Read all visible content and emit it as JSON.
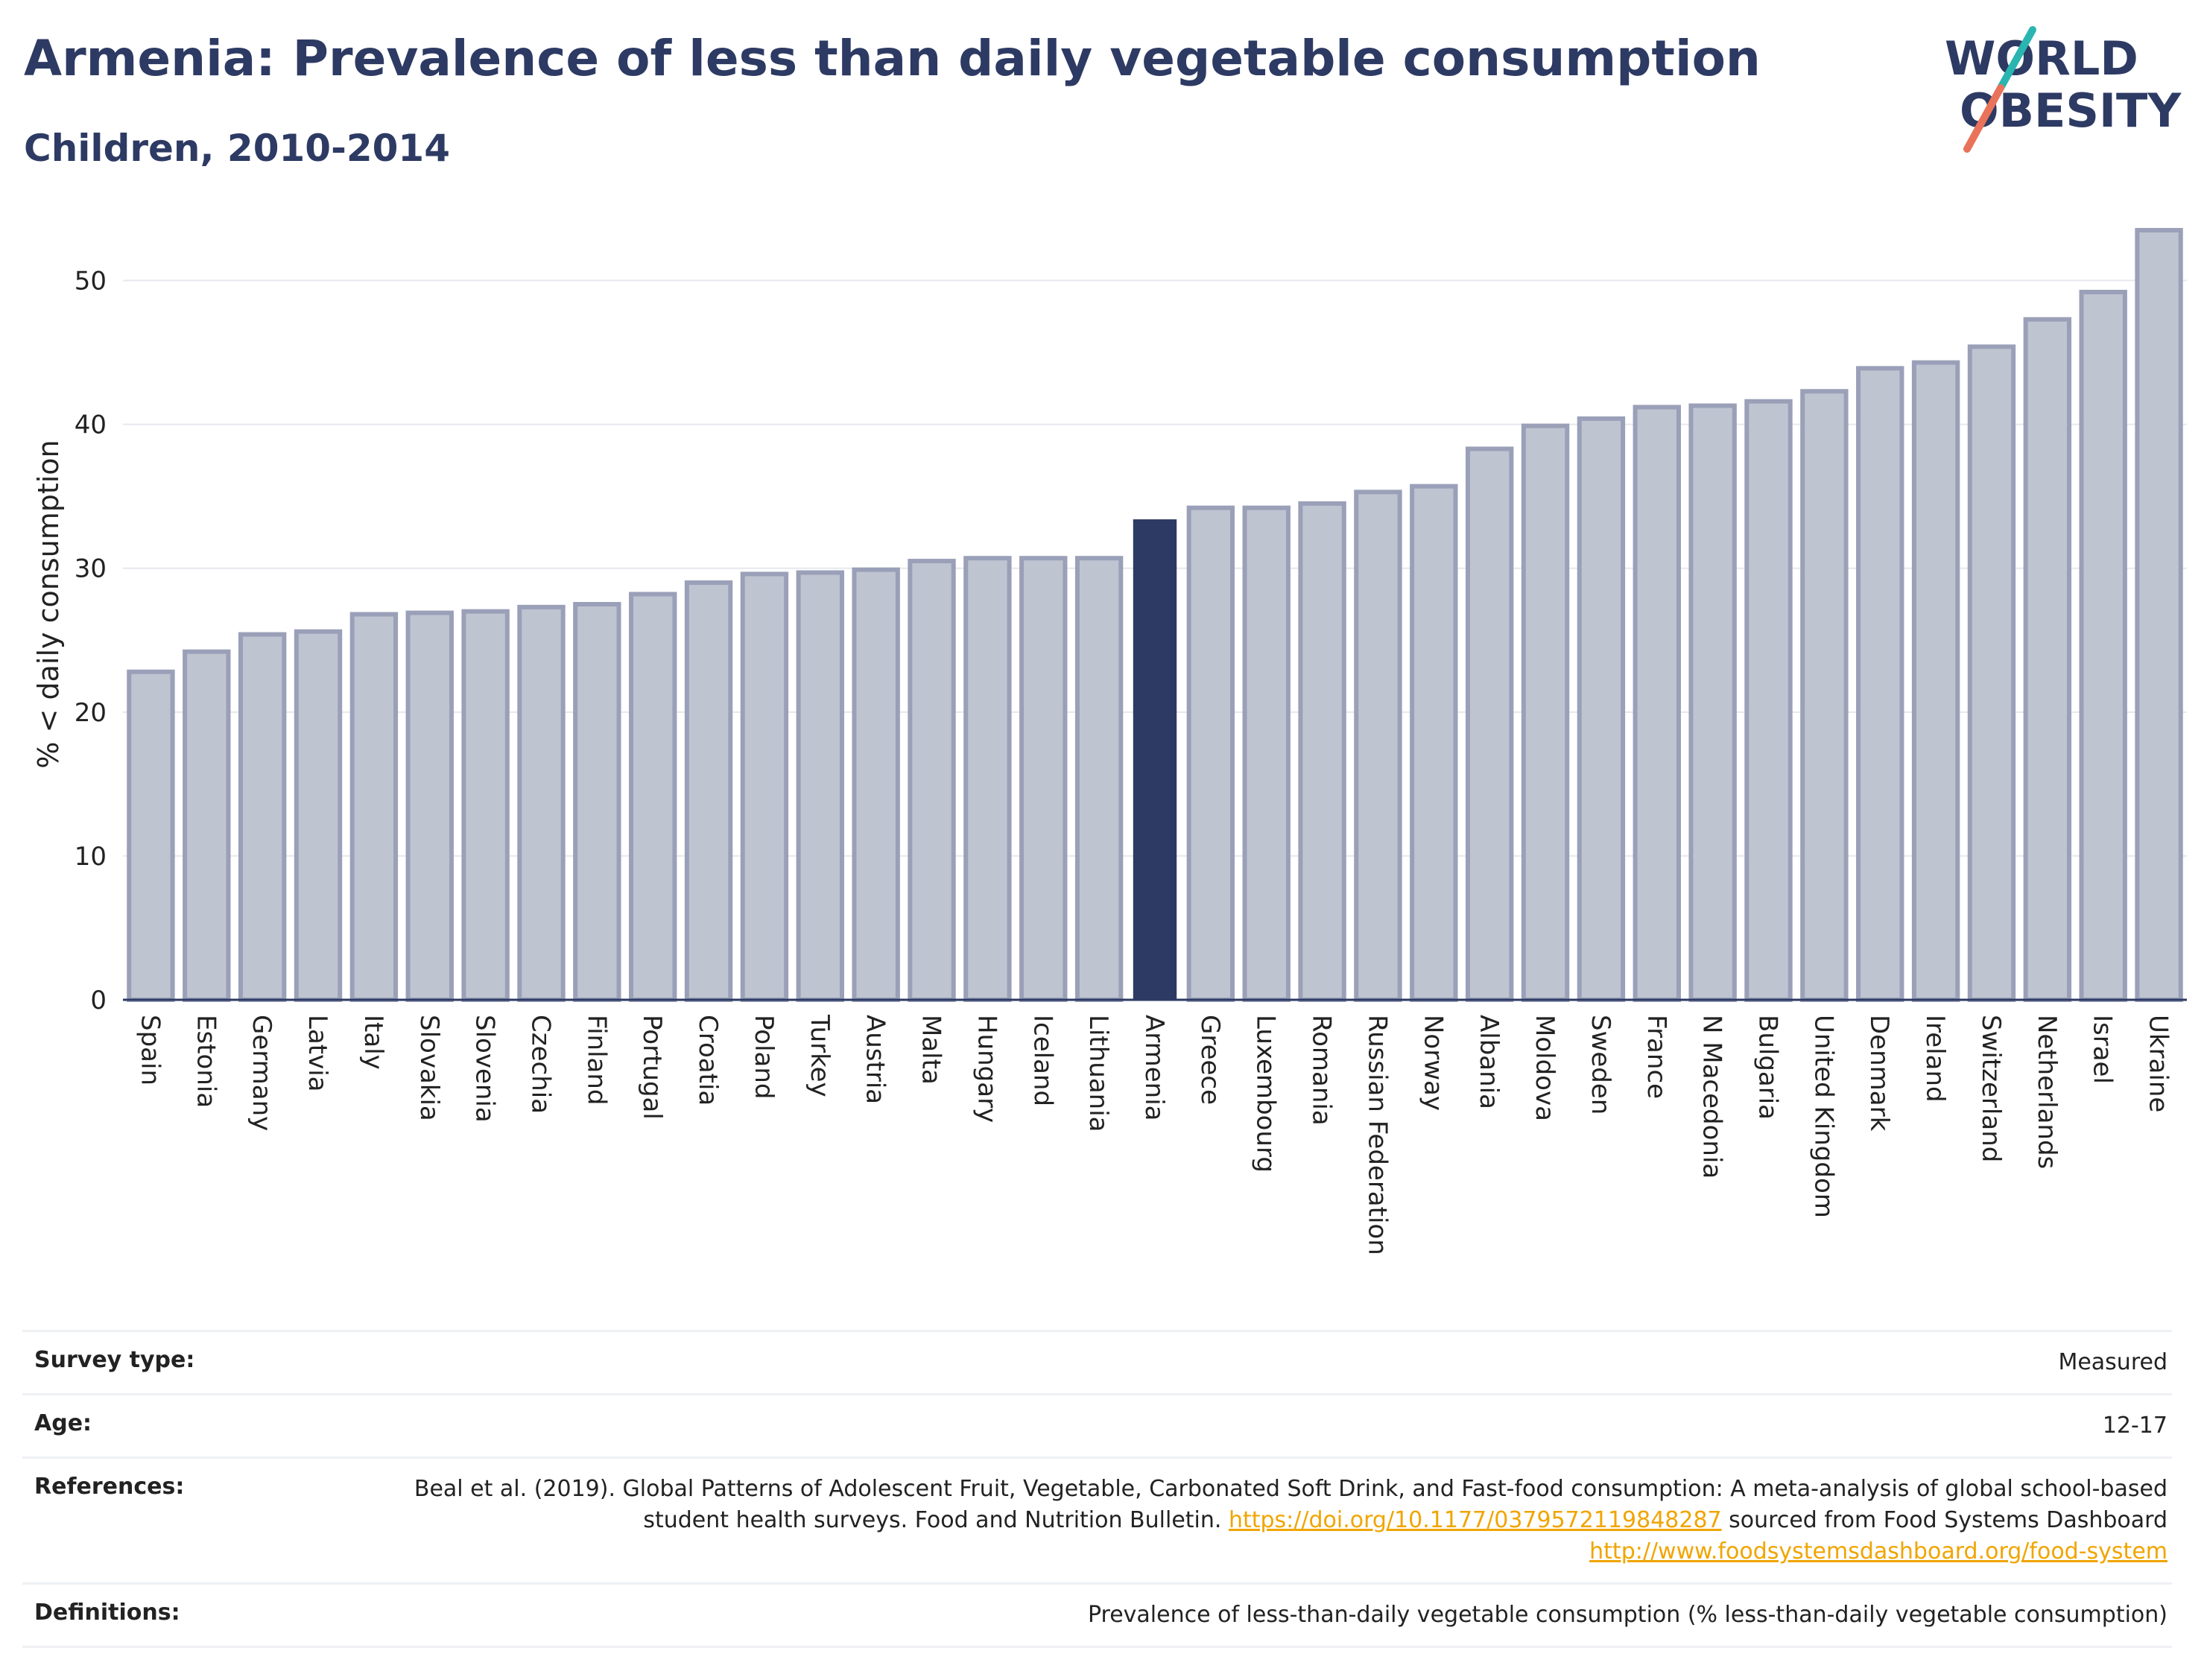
{
  "title": "Armenia: Prevalence of less than daily vegetable consumption",
  "subtitle": "Children, 2010-2014",
  "logo": {
    "line1": "WORLD",
    "line2": "OBESITY"
  },
  "colors": {
    "highlight": "#2d3a63",
    "bar": "#bfc4d1",
    "bar_edge": "#9aa0b8",
    "accent_teal": "#2ab5b1",
    "accent_coral": "#e8735a",
    "link": "#f0a500"
  },
  "chart_data": {
    "type": "bar",
    "title": "Armenia: Prevalence of less than daily vegetable consumption",
    "subtitle": "Children, 2010-2014",
    "xlabel": "",
    "ylabel": "% < daily consumption",
    "ylim": [
      0,
      55
    ],
    "yticks": [
      0,
      10,
      20,
      30,
      40,
      50
    ],
    "grid": true,
    "highlight": "Armenia",
    "categories": [
      "Spain",
      "Estonia",
      "Germany",
      "Latvia",
      "Italy",
      "Slovakia",
      "Slovenia",
      "Czechia",
      "Finland",
      "Portugal",
      "Croatia",
      "Poland",
      "Turkey",
      "Austria",
      "Malta",
      "Hungary",
      "Iceland",
      "Lithuania",
      "Armenia",
      "Greece",
      "Luxembourg",
      "Romania",
      "Russian Federation",
      "Norway",
      "Albania",
      "Moldova",
      "Sweden",
      "France",
      "N Macedonia",
      "Bulgaria",
      "United Kingdom",
      "Denmark",
      "Ireland",
      "Switzerland",
      "Netherlands",
      "Israel",
      "Ukraine"
    ],
    "values": [
      22.8,
      24.2,
      25.4,
      25.6,
      26.8,
      26.9,
      27.0,
      27.3,
      27.5,
      28.2,
      29.0,
      29.6,
      29.7,
      29.9,
      30.5,
      30.7,
      30.7,
      30.7,
      33.4,
      34.2,
      34.2,
      34.5,
      35.3,
      35.7,
      38.3,
      39.9,
      40.4,
      41.2,
      41.3,
      41.6,
      42.3,
      43.9,
      44.3,
      45.4,
      47.3,
      49.2,
      53.5
    ]
  },
  "info": {
    "survey_type": {
      "label": "Survey type:",
      "value": "Measured"
    },
    "age": {
      "label": "Age:",
      "value": "12-17"
    },
    "references": {
      "label": "References:",
      "text1": "Beal et al. (2019). Global Patterns of Adolescent Fruit, Vegetable, Carbonated Soft Drink, and Fast-food consumption: A meta-analysis of global school-based student health surveys. Food and Nutrition Bulletin. ",
      "link1": "https://doi.org/10.1177/0379572119848287",
      "text2": " sourced from Food Systems Dashboard ",
      "link2": "http://www.foodsystemsdashboard.org/food-system"
    },
    "definitions": {
      "label": "Definitions:",
      "value": "Prevalence of less-than-daily vegetable consumption (% less-than-daily vegetable consumption)"
    }
  }
}
